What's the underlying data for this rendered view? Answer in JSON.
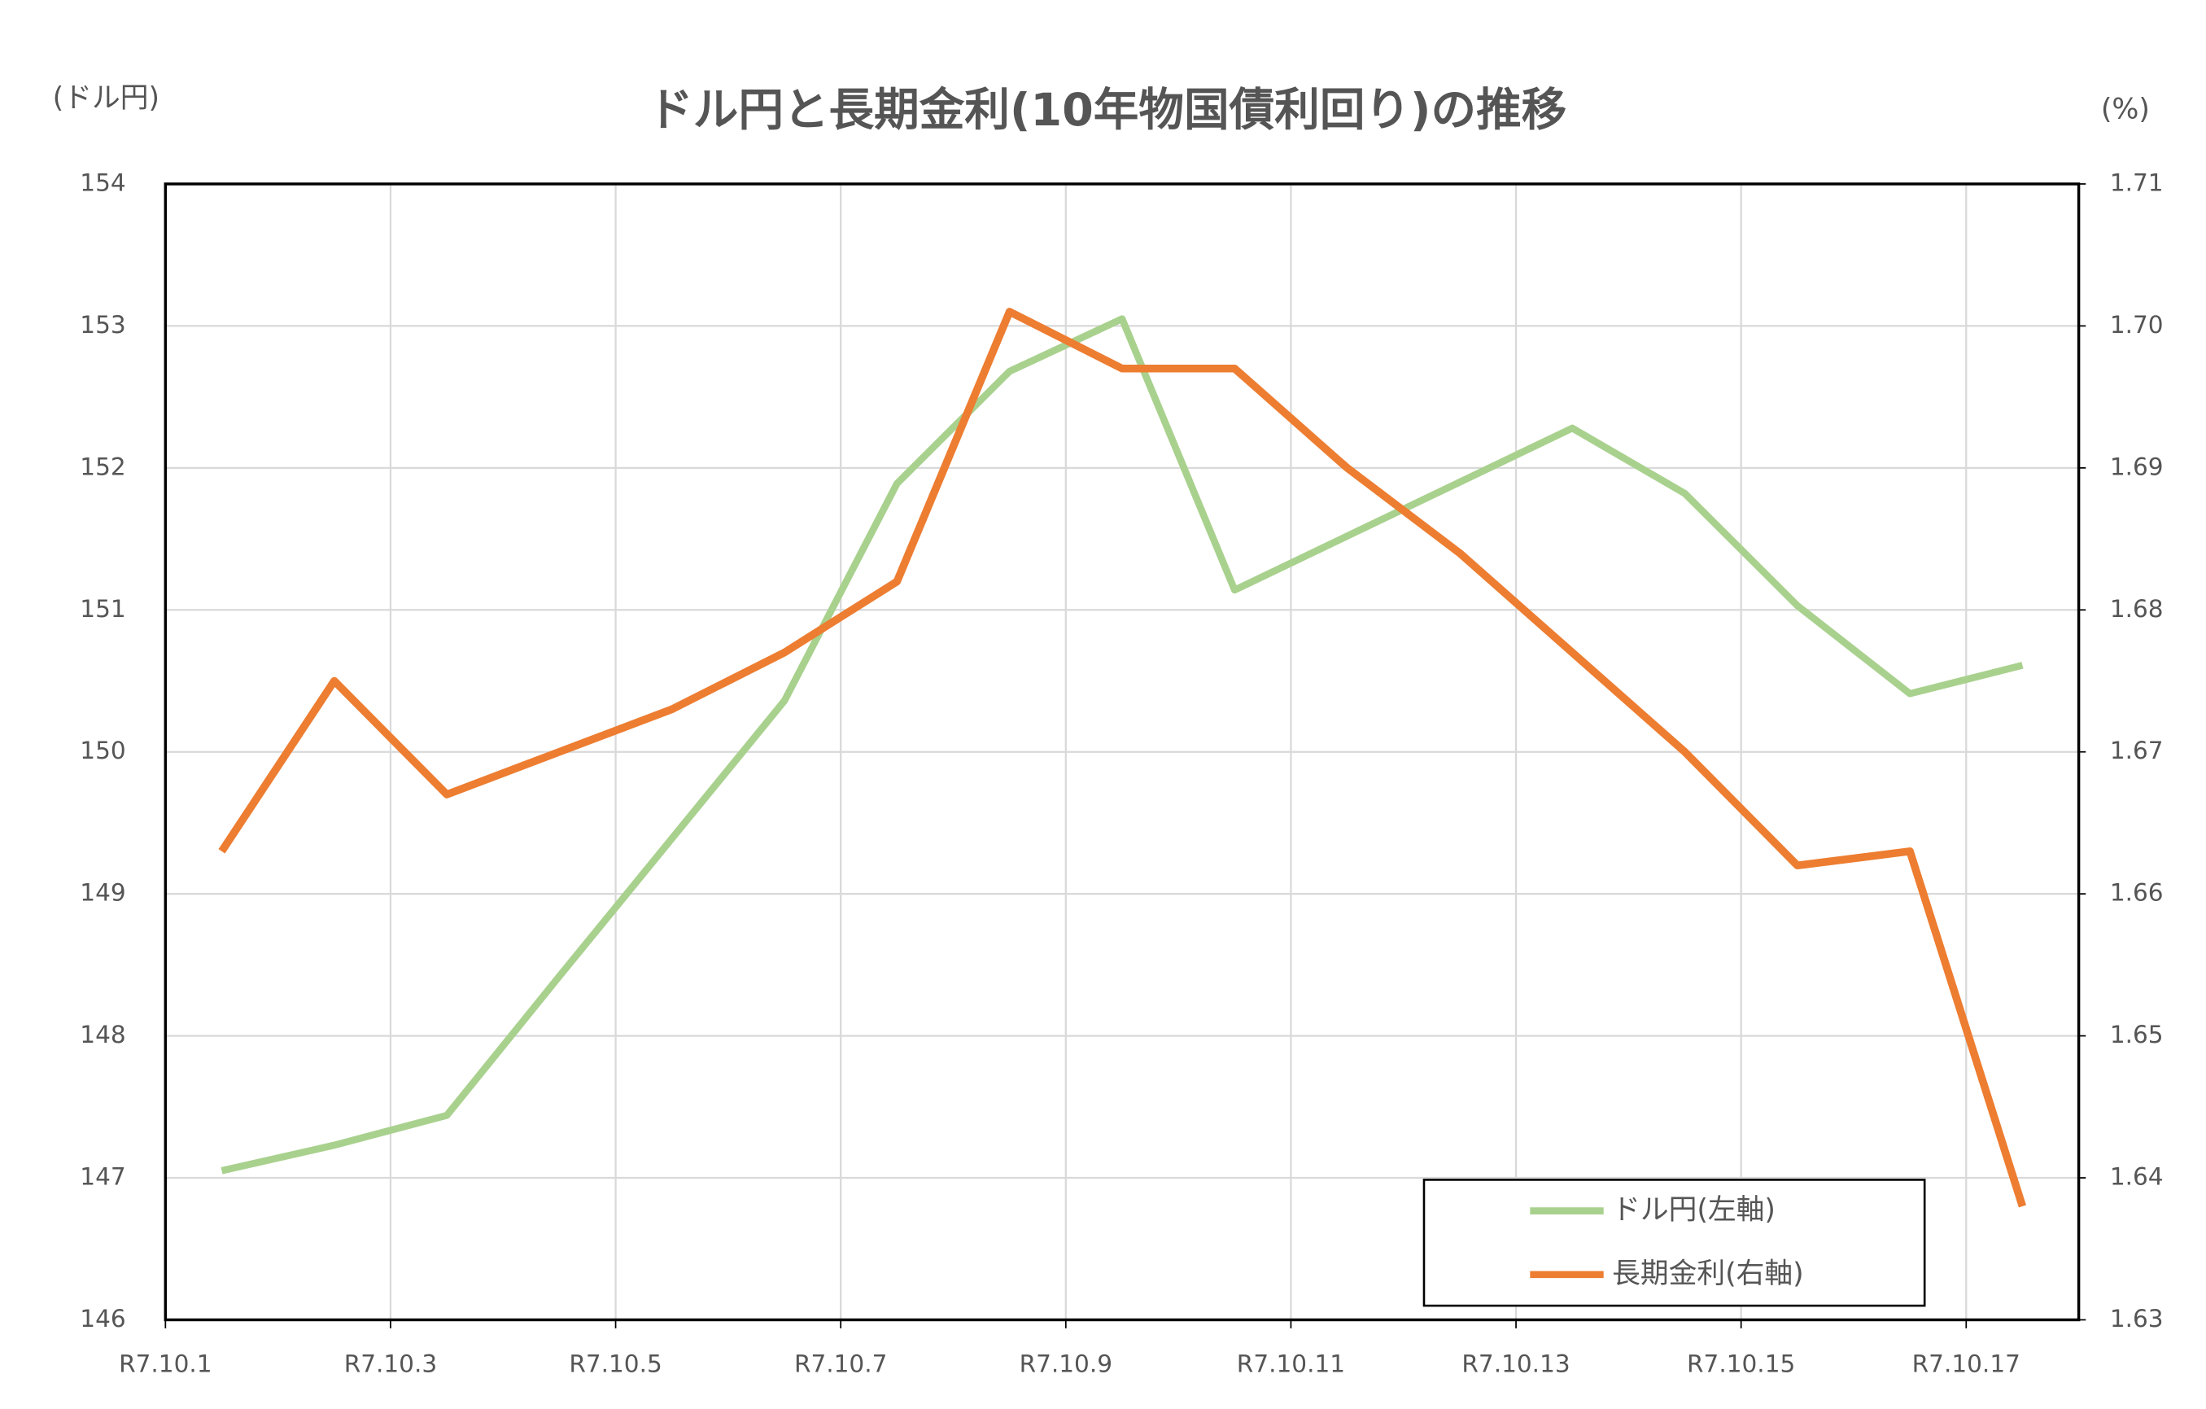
{
  "chart_data": {
    "type": "line",
    "title": "ドル円と長期金利(10年物国債利回り)の推移",
    "y_label": "(ドル円)",
    "y2_label": "(%)",
    "categories": [
      "R7.10.1",
      null,
      "R7.10.3",
      null,
      "R7.10.5",
      null,
      "R7.10.7",
      null,
      "R7.10.9",
      null,
      "R7.10.11",
      null,
      "R7.10.13",
      null,
      "R7.10.15",
      null,
      "R7.10.17"
    ],
    "series": [
      {
        "name": "ドル円(左軸)",
        "color": "#a9d18e",
        "values": [
          147.05,
          147.23,
          147.44,
          148.42,
          149.39,
          150.36,
          151.89,
          152.68,
          153.05,
          151.14,
          151.52,
          151.9,
          152.28,
          151.82,
          151.03,
          150.41,
          150.61
        ]
      },
      {
        "name": "長期金利(右軸)",
        "color": "#ed7d31",
        "axis": "y2",
        "values": [
          1.663,
          1.675,
          1.667,
          1.67,
          1.673,
          1.677,
          1.682,
          1.701,
          1.697,
          1.697,
          1.69,
          1.684,
          1.677,
          1.67,
          1.662,
          1.663,
          1.638
        ]
      }
    ],
    "ylim": [
      146,
      154
    ],
    "yticks": [
      146,
      147,
      148,
      149,
      150,
      151,
      152,
      153,
      154
    ],
    "y2lim": [
      1.63,
      1.71
    ],
    "y2ticks": [
      1.63,
      1.64,
      1.65,
      1.66,
      1.67,
      1.68,
      1.69,
      {
        "value": 1.7,
        "label": "1.70"
      },
      1.71
    ],
    "grid": true,
    "legend": "lower right"
  }
}
